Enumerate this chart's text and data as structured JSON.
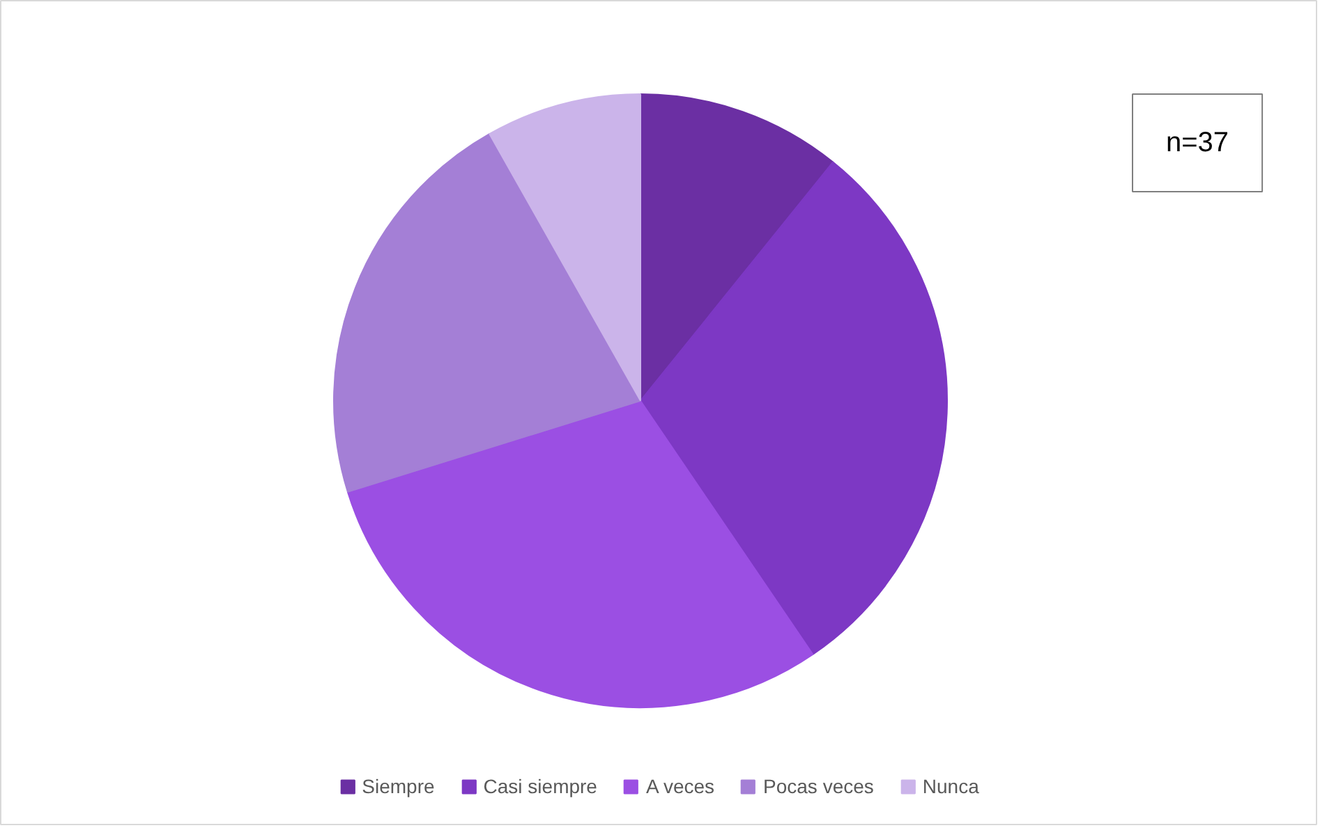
{
  "chart_data": {
    "type": "pie",
    "categories": [
      "Siempre",
      "Casi siempre",
      "A veces",
      "Pocas veces",
      "Nunca"
    ],
    "values": [
      10.8,
      29.7,
      29.7,
      21.6,
      8.2
    ],
    "colors": [
      "#6b2fa3",
      "#7d38c4",
      "#9b4fe3",
      "#a47fd6",
      "#cbb4ea"
    ],
    "annotations": [
      "n=37"
    ],
    "legend": "bottom"
  }
}
